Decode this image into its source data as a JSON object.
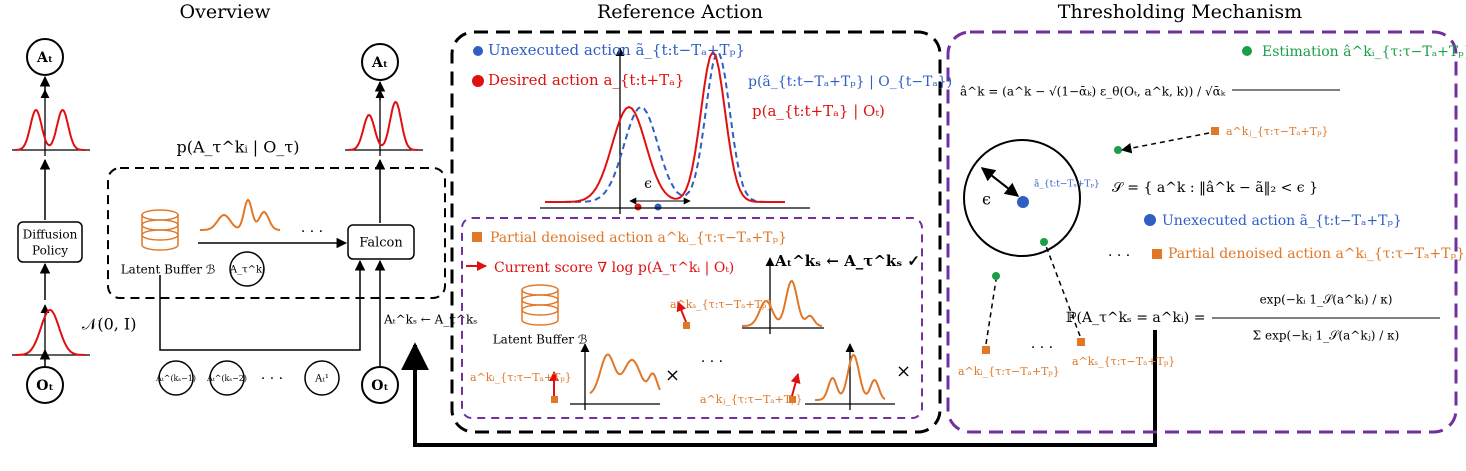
{
  "overview": {
    "title": "Overview",
    "output_left": "Aₜ",
    "output_right": "Aₜ",
    "posterior": "p(A_τ^kᵢ | O_τ)",
    "policy_line1": "Diffusion",
    "policy_line2": "Policy",
    "noise": "𝒩(0, I)",
    "obs_left": "Oₜ",
    "obs_right": "Oₜ",
    "buffer": "Latent Buffer ℬ",
    "buffer_sample": "A_τ^kᵢ",
    "falcon": "Falcon",
    "steps": [
      "Aₜ^(kₛ−1)",
      "Aₜ^(kₛ−2)",
      "· · ·",
      "Aₜ¹"
    ],
    "assign": "Aₜ^kₛ ← A_τ^kₛ",
    "dots": "· · ·"
  },
  "reference": {
    "title": "Reference Action",
    "unexecuted": "Unexecuted action ã_{t:t−Tₐ+Tₚ}",
    "desired": "Desired action a_{t:t+Tₐ}",
    "p_unexecuted": "p(ã_{t:t−Tₐ+Tₚ} | O_{t−Tₐ})",
    "p_desired": "p(a_{t:t+Tₐ} | Oₜ)",
    "epsilon": "ϵ",
    "partial": "Partial denoised action a^kᵢ_{τ:τ−Tₐ+Tₚ}",
    "score": "Current score ∇ log p(A_τ^kᵢ | Oₜ)",
    "accept": "Aₜ^kₛ ← A_τ^kₛ ✓",
    "buffer": "Latent Buffer ℬ",
    "sample_s": "a^kₛ_{τ:τ−Tₐ+Tₚ}",
    "sample_i": "a^kᵢ_{τ:τ−Tₐ+Tₚ}",
    "sample_j": "a^kⱼ_{τ:τ−Tₐ+Tₚ}",
    "reject": "×",
    "dots": "· · ·"
  },
  "threshold": {
    "title": "Thresholding Mechanism",
    "estimation": "Estimation â^kᵢ_{τ:τ−Tₐ+Tₚ}",
    "estimate_formula": "â^k = (a^k − √(1−ᾱₖ) ε_θ(Oₜ, a^k, k)) / √ᾱₖ",
    "sample_j": "a^kⱼ_{τ:τ−Tₐ+Tₚ}",
    "unexecuted_point": "ã_{t:t−Tₐ+Tₚ}",
    "epsilon": "ϵ",
    "set": "𝒮 = { a^k : ‖â^k − ã‖₂ < ϵ }",
    "unexecuted": "Unexecuted action ã_{t:t−Tₐ+Tₚ}",
    "partial": "Partial denoised action a^kᵢ_{τ:τ−Tₐ+Tₚ}",
    "dots": "· · ·",
    "prob_lhs": "ℙ(A_τ^kₛ = a^kᵢ) =",
    "prob_num": "exp(−kᵢ 1_𝒮(a^kᵢ) / κ)",
    "prob_den": "Σ exp(−kⱼ 1_𝒮(a^kⱼ) / κ)",
    "sample_i": "a^kᵢ_{τ:τ−Tₐ+Tₚ}",
    "sample_s": "a^kₛ_{τ:τ−Tₐ+Tₚ}"
  }
}
